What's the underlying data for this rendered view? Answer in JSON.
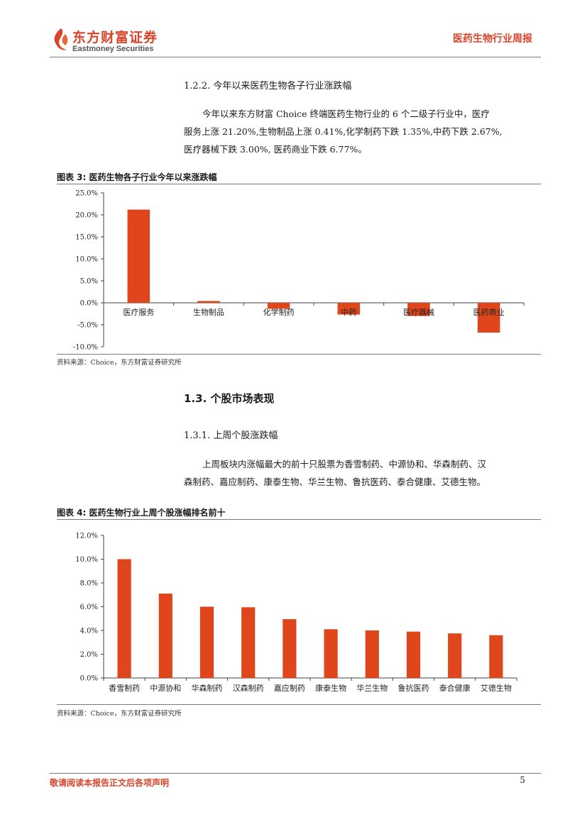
{
  "header": {
    "logo_cn": "东方财富证券",
    "logo_en": "Eastmoney Securities",
    "report_type": "医药生物行业周报",
    "brand_color": "#d9452b"
  },
  "section_122": {
    "heading": "1.2.2.  今年以来医药生物各子行业涨跌幅",
    "paragraph_lines": [
      "今年以来东方财富 Choice 终端医药生物行业的 6 个二级子行业中，医疗",
      "服务上涨 21.20%,生物制品上涨 0.41%,化学制药下跌 1.35%,中药下跌 2.67%,",
      "医疗器械下跌 3.00%, 医药商业下跌 6.77%。"
    ]
  },
  "figure3": {
    "title": "图表  3:  医药生物各子行业今年以来涨跌幅",
    "source": "资料来源：Choice，东方财富证券研究所"
  },
  "section_13": {
    "heading": "1.3.  个股市场表现"
  },
  "section_131": {
    "heading": "1.3.1.  上周个股涨跌幅",
    "paragraph_lines": [
      "上周板块内涨幅最大的前十只股票为香雪制药、中源协和、华森制药、汉",
      "森制药、嘉应制药、康泰生物、华兰生物、鲁抗医药、泰合健康、艾德生物。"
    ]
  },
  "figure4": {
    "title": "图表  4:  医药生物行业上周个股涨幅排名前十",
    "source": "资料来源：Choice，东方财富证券研究所"
  },
  "footer": {
    "disclaimer": "敬请阅读本报告正文后各项声明",
    "page_number": "5"
  },
  "chart_data": [
    {
      "type": "bar",
      "categories": [
        "医疗服务",
        "生物制品",
        "化学制药",
        "中药",
        "医疗器械",
        "医药商业"
      ],
      "values": [
        21.2,
        0.41,
        -1.35,
        -2.67,
        -3.0,
        -6.77
      ],
      "ylim": [
        -10,
        25
      ],
      "yticks": [
        25,
        20,
        15,
        10,
        5,
        0,
        -5,
        -10
      ],
      "ytick_labels": [
        "25.0%",
        "20.0%",
        "15.0%",
        "10.0%",
        "5.0%",
        "0.0%",
        "-5.0%",
        "-10.0%"
      ],
      "bar_color": "#e0461c",
      "grid": false
    },
    {
      "type": "bar",
      "categories": [
        "香雪制药",
        "中源协和",
        "华森制药",
        "汉森制药",
        "嘉应制药",
        "康泰生物",
        "华兰生物",
        "鲁抗医药",
        "泰合健康",
        "艾德生物"
      ],
      "values": [
        10.0,
        7.1,
        6.0,
        5.95,
        4.95,
        4.1,
        4.0,
        3.9,
        3.75,
        3.6
      ],
      "ylim": [
        0,
        12
      ],
      "yticks": [
        12,
        10,
        8,
        6,
        4,
        2,
        0
      ],
      "ytick_labels": [
        "12.0%",
        "10.0%",
        "8.0%",
        "6.0%",
        "4.0%",
        "2.0%",
        "0.0%"
      ],
      "bar_color": "#e0461c",
      "grid": false
    }
  ]
}
